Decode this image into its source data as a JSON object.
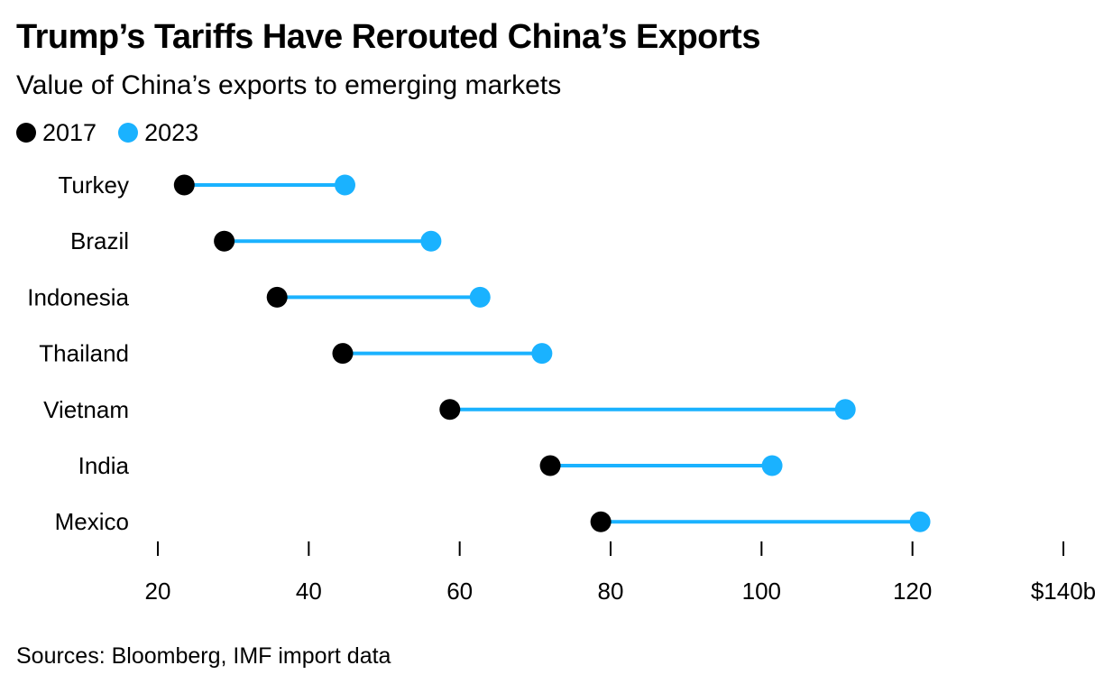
{
  "chart_data": {
    "type": "dumbbell",
    "title": "Trump’s Tariffs Have Rerouted China’s Exports",
    "subtitle": "Value of China’s exports to emerging markets",
    "source": "Sources: Bloomberg, IMF import data",
    "categories": [
      "Turkey",
      "Brazil",
      "Indonesia",
      "Thailand",
      "Vietnam",
      "India",
      "Mexico"
    ],
    "series": [
      {
        "name": "2017",
        "color": "#000000",
        "values": [
          23.5,
          28.8,
          35.8,
          44.5,
          58.7,
          72.0,
          78.7
        ]
      },
      {
        "name": "2023",
        "color": "#1ab2ff",
        "values": [
          44.8,
          56.2,
          62.7,
          70.9,
          111.1,
          101.4,
          121.0
        ]
      }
    ],
    "x_ticks": [
      20,
      40,
      60,
      80,
      100,
      120,
      140
    ],
    "x_tick_labels": [
      "20",
      "40",
      "60",
      "80",
      "100",
      "120",
      "$140b"
    ],
    "xlim": [
      20,
      140
    ],
    "connector_color": "#1ab2ff",
    "grid": false,
    "legend_position": "top-left"
  }
}
